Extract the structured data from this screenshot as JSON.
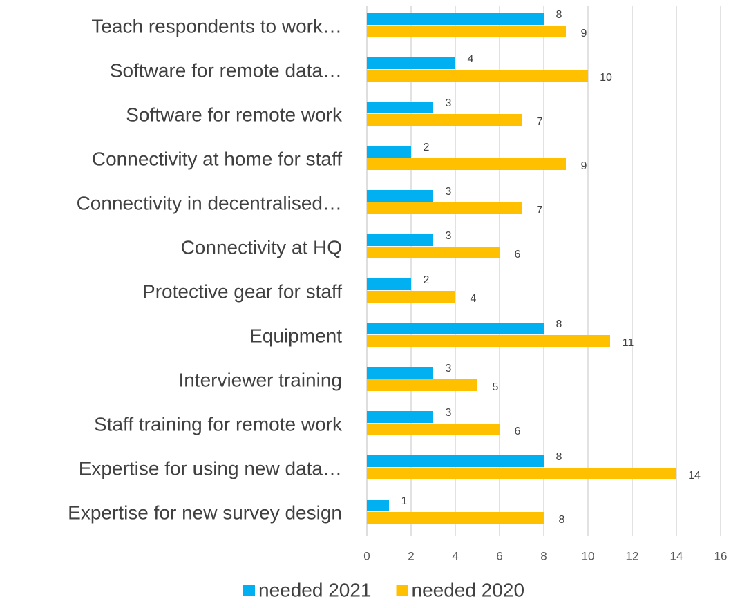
{
  "chart_data": {
    "type": "bar",
    "orientation": "horizontal",
    "categories": [
      "Teach respondents to work…",
      "Software for remote data…",
      "Software for remote work",
      "Connectivity at home for staff",
      "Connectivity in decentralised…",
      "Connectivity at HQ",
      "Protective gear for staff",
      "Equipment",
      "Interviewer training",
      "Staff training for remote work",
      "Expertise for using new data…",
      "Expertise for new survey design"
    ],
    "series": [
      {
        "name": "needed 2021",
        "color": "#00B0F0",
        "values": [
          8,
          4,
          3,
          2,
          3,
          3,
          2,
          8,
          3,
          3,
          8,
          1
        ]
      },
      {
        "name": "needed 2020",
        "color": "#FFC000",
        "values": [
          9,
          10,
          7,
          9,
          7,
          6,
          4,
          11,
          5,
          6,
          14,
          8
        ]
      }
    ],
    "xlim": [
      0,
      16
    ],
    "xticks": [
      0,
      2,
      4,
      6,
      8,
      10,
      12,
      14,
      16
    ],
    "grid": true,
    "legend": "bottom"
  }
}
